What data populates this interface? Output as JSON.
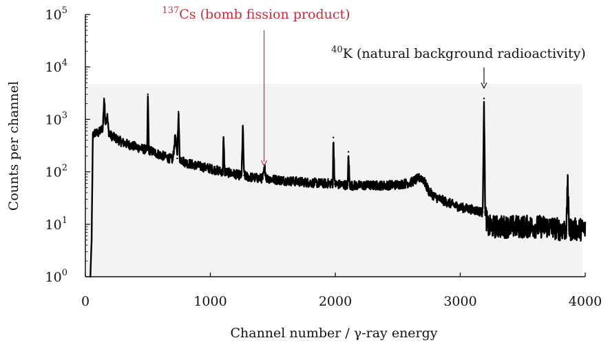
{
  "chart_data": {
    "type": "line",
    "title": "",
    "xlabel": "Channel number / γ-ray energy",
    "ylabel": "Counts per channel",
    "xlim": [
      0,
      4000
    ],
    "ylim": [
      1,
      100000
    ],
    "yscale": "log",
    "grid": false,
    "x_ticks": [
      {
        "value": 0,
        "label": "0"
      },
      {
        "value": 1000,
        "label": "1000"
      },
      {
        "value": 2000,
        "label": "2000"
      },
      {
        "value": 3000,
        "label": "3000"
      },
      {
        "value": 4000,
        "label": "4000"
      }
    ],
    "y_ticks": [
      {
        "value": 1,
        "base": "10",
        "exp": "0"
      },
      {
        "value": 10,
        "base": "10",
        "exp": "1"
      },
      {
        "value": 100,
        "base": "10",
        "exp": "2"
      },
      {
        "value": 1000,
        "base": "10",
        "exp": "3"
      },
      {
        "value": 10000,
        "base": "10",
        "exp": "4"
      },
      {
        "value": 100000,
        "base": "10",
        "exp": "5"
      }
    ],
    "series": [
      {
        "name": "gamma spectrum",
        "color": "#000000",
        "points": [
          [
            40,
            1
          ],
          [
            50,
            5
          ],
          [
            60,
            500
          ],
          [
            80,
            560
          ],
          [
            100,
            540
          ],
          [
            120,
            600
          ],
          [
            140,
            700
          ],
          [
            150,
            2500
          ],
          [
            160,
            900
          ],
          [
            175,
            1200
          ],
          [
            185,
            600
          ],
          [
            200,
            500
          ],
          [
            300,
            360
          ],
          [
            400,
            300
          ],
          [
            495,
            260
          ],
          [
            500,
            3000
          ],
          [
            508,
            260
          ],
          [
            600,
            210
          ],
          [
            700,
            170
          ],
          [
            720,
            500
          ],
          [
            735,
            180
          ],
          [
            745,
            1400
          ],
          [
            755,
            180
          ],
          [
            800,
            150
          ],
          [
            900,
            130
          ],
          [
            1000,
            115
          ],
          [
            1100,
            100
          ],
          [
            1105,
            460
          ],
          [
            1115,
            100
          ],
          [
            1200,
            90
          ],
          [
            1250,
            85
          ],
          [
            1260,
            700
          ],
          [
            1270,
            85
          ],
          [
            1300,
            80
          ],
          [
            1390,
            75
          ],
          [
            1420,
            75
          ],
          [
            1435,
            120
          ],
          [
            1450,
            75
          ],
          [
            1500,
            72
          ],
          [
            1600,
            68
          ],
          [
            1700,
            65
          ],
          [
            1800,
            62
          ],
          [
            1900,
            60
          ],
          [
            1980,
            60
          ],
          [
            1985,
            450
          ],
          [
            1995,
            58
          ],
          [
            2100,
            56
          ],
          [
            2105,
            240
          ],
          [
            2115,
            55
          ],
          [
            2200,
            55
          ],
          [
            2300,
            55
          ],
          [
            2400,
            55
          ],
          [
            2500,
            57
          ],
          [
            2600,
            62
          ],
          [
            2680,
            78
          ],
          [
            2700,
            75
          ],
          [
            2750,
            42
          ],
          [
            2800,
            33
          ],
          [
            2900,
            26
          ],
          [
            3000,
            21
          ],
          [
            3100,
            19
          ],
          [
            3180,
            17
          ],
          [
            3190,
            2500
          ],
          [
            3200,
            17
          ],
          [
            3220,
            9
          ],
          [
            3300,
            9
          ],
          [
            3400,
            9
          ],
          [
            3500,
            9
          ],
          [
            3600,
            9
          ],
          [
            3700,
            9
          ],
          [
            3800,
            8
          ],
          [
            3850,
            8
          ],
          [
            3860,
            80
          ],
          [
            3870,
            8
          ],
          [
            3950,
            8
          ],
          [
            4000,
            8
          ]
        ]
      }
    ],
    "annotations": [
      {
        "sup": "137",
        "text": "Cs (bomb fission product)",
        "x": 1430,
        "y": 120,
        "color": "#c8293a"
      },
      {
        "sup": "40",
        "text": "K (natural background radioactivity)",
        "x": 3190,
        "y": 2500,
        "color": "#111111"
      }
    ]
  }
}
